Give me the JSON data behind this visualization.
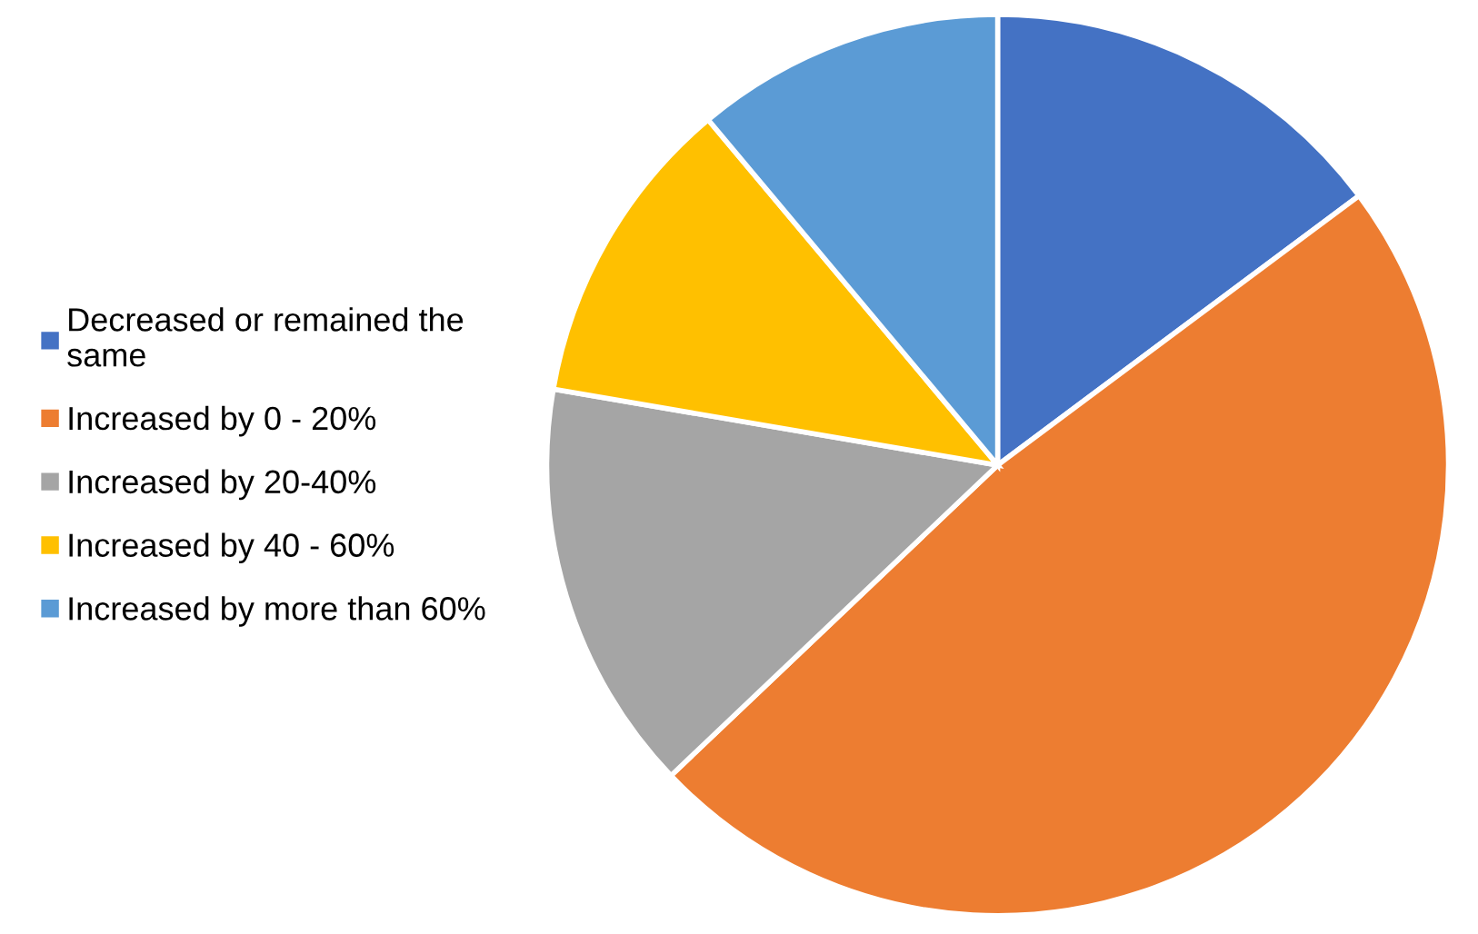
{
  "chart_data": {
    "type": "pie",
    "categories": [
      "Decreased or remained the same",
      "Increased by 0 - 20%",
      "Increased by 20-40%",
      "Increased by 40 - 60%",
      "Increased by more than 60%"
    ],
    "values": [
      14.8,
      48.1,
      14.8,
      11.2,
      11.1
    ],
    "colors": [
      "#4472c4",
      "#ed7d31",
      "#a5a5a5",
      "#ffc000",
      "#5b9bd5"
    ],
    "legend": "left"
  }
}
